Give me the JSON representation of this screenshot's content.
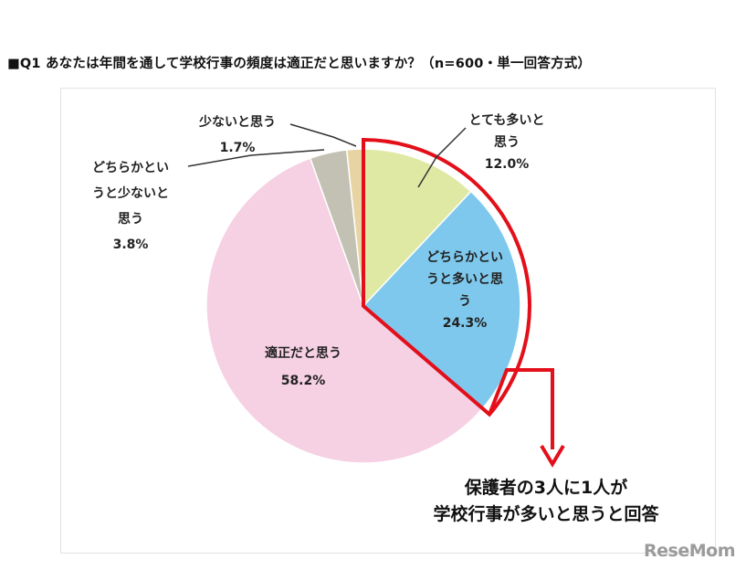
{
  "question": "■Q1 あなたは年間を通して学校行事の頻度は適正だと思いますか？（n=600・単一回答方式）",
  "chart_data": {
    "type": "pie",
    "slices": [
      {
        "label_lines": [
          "とても多いと",
          "思う"
        ],
        "value": 12.0,
        "value_text": "12.0%",
        "color": "#dfe9a3"
      },
      {
        "label_lines": [
          "どちらかとい",
          "うと多いと思",
          "う"
        ],
        "value": 24.3,
        "value_text": "24.3%",
        "color": "#7dc8ec"
      },
      {
        "label_lines": [
          "適正だと思う"
        ],
        "value": 58.2,
        "value_text": "58.2%",
        "color": "#f6d0e3"
      },
      {
        "label_lines": [
          "どちらかとい",
          "うと少ないと",
          "思う"
        ],
        "value": 3.8,
        "value_text": "3.8%",
        "color": "#c2c1b3"
      },
      {
        "label_lines": [
          "少ないと思う"
        ],
        "value": 1.7,
        "value_text": "1.7%",
        "color": "#e8d4a2"
      }
    ],
    "highlight_color": "#e30f1a",
    "highlight_slices": [
      0,
      1
    ]
  },
  "callout": {
    "line1": "保護者の3人に1人が",
    "line2": "学校行事が多いと思うと回答"
  },
  "logo": "ReseMom"
}
